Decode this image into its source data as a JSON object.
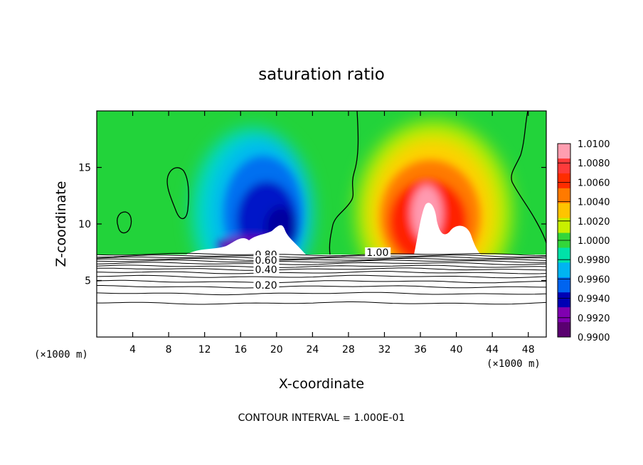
{
  "chart_data": {
    "type": "heatmap",
    "title": "saturation ratio",
    "xlabel": "X-coordinate",
    "ylabel": "Z-coordinate",
    "x_unit_label": "(×1000 m)",
    "xlim": [
      0,
      50
    ],
    "ylim": [
      0,
      20
    ],
    "x_ticks": [
      4,
      8,
      12,
      16,
      20,
      24,
      28,
      32,
      36,
      40,
      44,
      48
    ],
    "y_ticks": [
      5,
      10,
      15
    ],
    "colorbar": {
      "min": 0.99,
      "max": 1.01,
      "tick_labels": [
        "1.0100",
        "1.0080",
        "1.0060",
        "1.0040",
        "1.0020",
        "1.0000",
        "0.9980",
        "0.9960",
        "0.9940",
        "0.9920",
        "0.9900"
      ],
      "colors": [
        "#ff9eb0",
        "#ff3b3b",
        "#ff2d00",
        "#ff7a00",
        "#ffc400",
        "#c8ef00",
        "#33d63a",
        "#00e2a8",
        "#00b4f2",
        "#0064f0",
        "#0000b4",
        "#8000b0",
        "#5a0070"
      ]
    },
    "contour_labels": [
      {
        "text": "0.80",
        "x": 17.6,
        "z": 7.1
      },
      {
        "text": "0.60",
        "x": 17.6,
        "z": 6.6
      },
      {
        "text": "0.40",
        "x": 17.6,
        "z": 5.8
      },
      {
        "text": "0.20",
        "x": 17.6,
        "z": 4.4
      },
      {
        "text": "1.00",
        "x": 30.0,
        "z": 7.3
      }
    ],
    "contour_levels_below_cloud": [
      7.3,
      7.15,
      7.0,
      6.85,
      6.7,
      6.5,
      6.25,
      6.0,
      5.7,
      5.35,
      4.9,
      4.45,
      3.85,
      3.0
    ],
    "footer": "CONTOUR INTERVAL = 1.000E-01"
  }
}
